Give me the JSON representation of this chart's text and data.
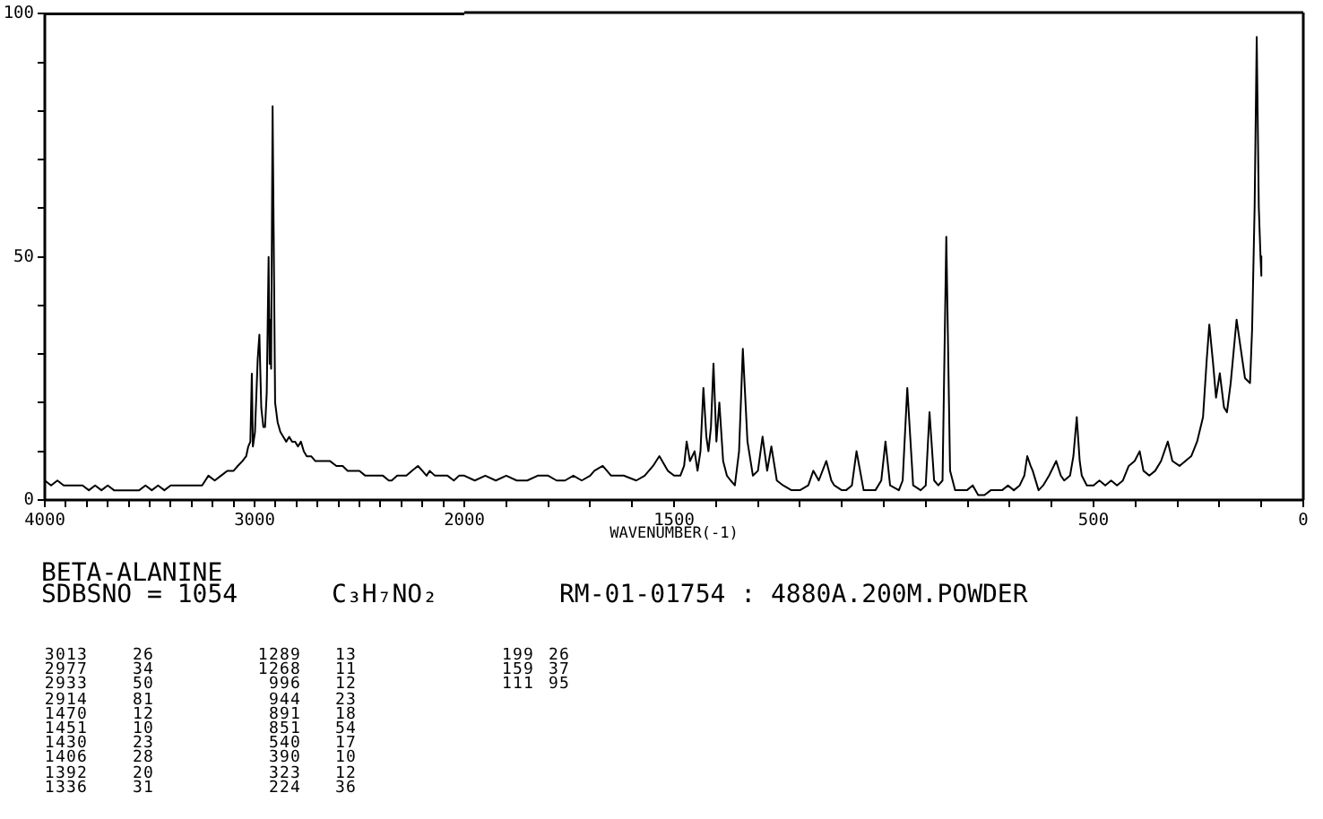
{
  "chart_data": [
    {
      "type": "line",
      "x": [
        4000,
        3970,
        3940,
        3910,
        3880,
        3850,
        3820,
        3790,
        3760,
        3730,
        3700,
        3670,
        3640,
        3610,
        3580,
        3550,
        3520,
        3490,
        3460,
        3430,
        3400,
        3370,
        3340,
        3310,
        3280,
        3250,
        3220,
        3190,
        3160,
        3130,
        3100,
        3080,
        3058,
        3040,
        3030,
        3020,
        3013,
        3008,
        2998,
        2985,
        2977,
        2968,
        2958,
        2950,
        2942,
        2933,
        2928,
        2925,
        2921,
        2914,
        2902,
        2890,
        2877,
        2863,
        2849,
        2835,
        2821,
        2807,
        2793,
        2779,
        2765,
        2751,
        2730,
        2710,
        2695,
        2670,
        2640,
        2610,
        2580,
        2556,
        2530,
        2500,
        2472,
        2440,
        2410,
        2388,
        2360,
        2346,
        2320,
        2300,
        2276,
        2250,
        2221,
        2200,
        2180,
        2165,
        2140,
        2109,
        2080,
        2050,
        2025,
        2000
      ],
      "values": [
        4,
        3,
        4,
        3,
        3,
        3,
        3,
        2,
        3,
        2,
        3,
        2,
        2,
        2,
        2,
        2,
        3,
        2,
        3,
        2,
        3,
        3,
        3,
        3,
        3,
        3,
        5,
        4,
        5,
        6,
        6,
        7,
        8,
        9,
        11,
        12,
        26,
        11,
        14,
        29,
        34,
        19,
        15,
        15,
        22,
        50,
        28,
        37,
        27,
        81,
        20,
        16,
        14,
        13,
        12,
        13,
        12,
        12,
        11,
        12,
        10,
        9,
        9,
        8,
        8,
        8,
        8,
        7,
        7,
        6,
        6,
        6,
        5,
        5,
        5,
        5,
        4,
        4,
        5,
        5,
        5,
        6,
        7,
        6,
        5,
        6,
        5,
        5,
        5,
        4,
        5,
        5
      ],
      "color": "#000000",
      "xlim": [
        4000,
        2000
      ],
      "xticks": [
        4000,
        {
          "value": 3900,
          "label": null
        },
        {
          "value": 3800,
          "label": null
        },
        {
          "value": 3700,
          "label": null
        },
        {
          "value": 3600,
          "label": null
        },
        {
          "value": 3500,
          "label": null
        },
        {
          "value": 3400,
          "label": null
        },
        {
          "value": 3300,
          "label": null
        },
        {
          "value": 3200,
          "label": null
        },
        {
          "value": 3100,
          "label": null
        },
        3000,
        {
          "value": 2900,
          "label": null
        },
        {
          "value": 2800,
          "label": null
        },
        {
          "value": 2700,
          "label": null
        },
        {
          "value": 2600,
          "label": null
        },
        {
          "value": 2500,
          "label": null
        },
        {
          "value": 2400,
          "label": null
        },
        {
          "value": 2300,
          "label": null
        },
        {
          "value": 2200,
          "label": null
        },
        {
          "value": 2100,
          "label": null
        },
        2000
      ],
      "ylim": [
        0,
        100
      ],
      "yticks": [
        0,
        {
          "value": 10,
          "label": null
        },
        {
          "value": 20,
          "label": null
        },
        {
          "value": 30,
          "label": null
        },
        {
          "value": 40,
          "label": null
        },
        50,
        {
          "value": 60,
          "label": null
        },
        {
          "value": 70,
          "label": null
        },
        {
          "value": 80,
          "label": null
        },
        {
          "value": 90,
          "label": null
        },
        100
      ]
    },
    {
      "type": "line",
      "x": [
        2000,
        1975,
        1950,
        1925,
        1900,
        1875,
        1850,
        1825,
        1800,
        1780,
        1760,
        1740,
        1720,
        1700,
        1690,
        1670,
        1650,
        1620,
        1590,
        1570,
        1550,
        1535,
        1515,
        1500,
        1485,
        1476,
        1470,
        1462,
        1451,
        1444,
        1437,
        1430,
        1423,
        1418,
        1412,
        1406,
        1399,
        1392,
        1383,
        1374,
        1365,
        1355,
        1345,
        1336,
        1325,
        1312,
        1300,
        1289,
        1278,
        1268,
        1255,
        1240,
        1220,
        1200,
        1180,
        1168,
        1155,
        1137,
        1125,
        1118,
        1100,
        1090,
        1076,
        1065,
        1048,
        1035,
        1020,
        1006,
        996,
        985,
        964,
        955,
        944,
        930,
        912,
        900,
        891,
        880,
        870,
        860,
        851,
        842,
        830,
        815,
        802,
        788,
        775,
        760,
        745,
        732,
        718,
        704,
        690,
        676,
        665,
        658,
        650,
        645,
        631,
        620,
        606,
        589,
        578,
        570,
        556,
        548,
        540,
        533,
        528,
        516,
        500,
        486,
        472,
        458,
        444,
        430,
        416,
        402,
        390,
        381,
        367,
        353,
        339,
        323,
        312,
        295,
        281,
        267,
        253,
        239,
        230,
        224,
        215,
        208,
        199,
        189,
        182,
        173,
        159,
        149,
        139,
        127,
        122,
        116,
        111,
        106,
        102,
        100
      ],
      "values": [
        5,
        4,
        5,
        4,
        5,
        4,
        4,
        5,
        5,
        4,
        4,
        5,
        4,
        5,
        6,
        7,
        5,
        5,
        4,
        5,
        7,
        9,
        6,
        5,
        5,
        7,
        12,
        8,
        10,
        6,
        10,
        23,
        13,
        10,
        15,
        28,
        12,
        20,
        8,
        5,
        4,
        3,
        10,
        31,
        12,
        5,
        6,
        13,
        6,
        11,
        4,
        3,
        2,
        2,
        3,
        6,
        4,
        8,
        4,
        3,
        2,
        2,
        3,
        10,
        2,
        2,
        2,
        4,
        12,
        3,
        2,
        4,
        23,
        3,
        2,
        3,
        18,
        4,
        3,
        4,
        54,
        6,
        2,
        2,
        2,
        3,
        1,
        1,
        2,
        2,
        2,
        3,
        2,
        3,
        5,
        9,
        7,
        6,
        2,
        3,
        5,
        8,
        5,
        4,
        5,
        9,
        17,
        8,
        5,
        3,
        3,
        4,
        3,
        4,
        3,
        4,
        7,
        8,
        10,
        6,
        5,
        6,
        8,
        12,
        8,
        7,
        8,
        9,
        12,
        17,
        29,
        36,
        28,
        21,
        26,
        19,
        18,
        24,
        37,
        31,
        25,
        24,
        35,
        60,
        95,
        60,
        50,
        46
      ],
      "color": "#000000",
      "xlabel": "WAVENUMBER(-1)",
      "xlim": [
        2000,
        0
      ],
      "xticks": [
        {
          "value": 1900,
          "label": null
        },
        {
          "value": 1800,
          "label": null
        },
        {
          "value": 1700,
          "label": null
        },
        {
          "value": 1600,
          "label": null
        },
        1500,
        {
          "value": 1400,
          "label": null
        },
        {
          "value": 1300,
          "label": null
        },
        {
          "value": 1200,
          "label": null
        },
        {
          "value": 1100,
          "label": null
        },
        {
          "value": 1000,
          "label": null
        },
        {
          "value": 900,
          "label": null
        },
        {
          "value": 800,
          "label": null
        },
        {
          "value": 700,
          "label": null
        },
        {
          "value": 600,
          "label": null
        },
        500,
        {
          "value": 400,
          "label": null
        },
        {
          "value": 300,
          "label": null
        },
        {
          "value": 200,
          "label": null
        },
        {
          "value": 100,
          "label": null
        },
        0
      ],
      "ylim": [
        0,
        100
      ],
      "tick_labels": "x"
    },
    {
      "type": "other",
      "title": "BETA-ALANINE",
      "annotations": [
        "SDBSNO = 1054",
        "C₃H₇NO₂",
        "RM-01-01754 : 4880A.200M.POWDER",
        "3013 26",
        "2977 34",
        "2933 50",
        "2914 81",
        "1470 12",
        "1451 10",
        "1430 23",
        "1406 28",
        "1392 20",
        "1336 31",
        "1289 13",
        "1268 11",
        "996 12",
        "944 23",
        "891 18",
        "851 54",
        "540 17",
        "390 10",
        "323 12",
        "224 36",
        "199 26",
        "159 37",
        "111 95"
      ]
    }
  ]
}
